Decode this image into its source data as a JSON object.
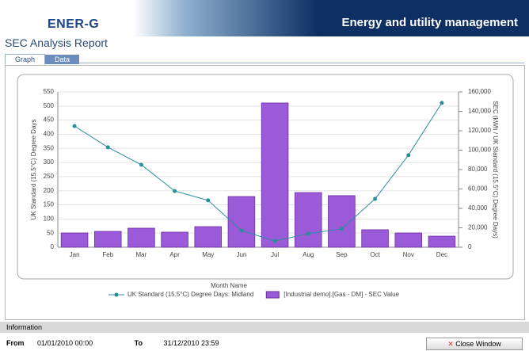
{
  "header": {
    "logo": "ENER-G",
    "tagline": "Energy and utility management",
    "report_title": "SEC Analysis Report",
    "tabs": [
      "Graph",
      "Data"
    ]
  },
  "chart_data": {
    "type": "combo",
    "x_label": "Month Name",
    "y_label": "UK Standard (15.5°C) Degree Days",
    "y2_label": "SEC (kWh / UK Standard (15.5°C) Degree Days)",
    "categories": [
      "Jan",
      "Feb",
      "Mar",
      "Apr",
      "May",
      "Jun",
      "Jul",
      "Aug",
      "Sep",
      "Oct",
      "Nov",
      "Dec"
    ],
    "series": [
      {
        "name": "UK Standard (15.5°C) Degree Days: Midland",
        "type": "line",
        "color": "#2a8d9c",
        "values": [
          429,
          354,
          292,
          199,
          166,
          59,
          22,
          48,
          65,
          171,
          326,
          511
        ]
      },
      {
        "name": "[Industrial demo].[Gas - DM] - SEC Value",
        "type": "bar",
        "color": "#9b5ad8",
        "axis": "y2",
        "values": [
          14700,
          16300,
          19600,
          15500,
          21200,
          52200,
          148600,
          56300,
          53100,
          18000,
          14700,
          11400
        ]
      }
    ],
    "ylim": [
      0,
      550
    ],
    "yticks": [
      0,
      50,
      100,
      150,
      200,
      250,
      300,
      350,
      400,
      450,
      500,
      550
    ],
    "y2lim": [
      0,
      160000
    ],
    "y2ticks": [
      0,
      {
        "value": 20000,
        "label": "20,000"
      },
      {
        "value": 40000,
        "label": "40,000"
      },
      {
        "value": 60000,
        "label": "60,000"
      },
      {
        "value": 80000,
        "label": "80,000"
      },
      {
        "value": 100000,
        "label": "100,000"
      },
      {
        "value": 120000,
        "label": "120,000"
      },
      {
        "value": 140000,
        "label": "140,000"
      },
      {
        "value": 160000,
        "label": "160,000"
      }
    ],
    "grid": true
  },
  "footer": {
    "section": "Information",
    "from_label": "From",
    "from": "01/01/2010 00:00",
    "to_label": "To",
    "to": "31/12/2010 23:59",
    "button": "Close Window"
  }
}
